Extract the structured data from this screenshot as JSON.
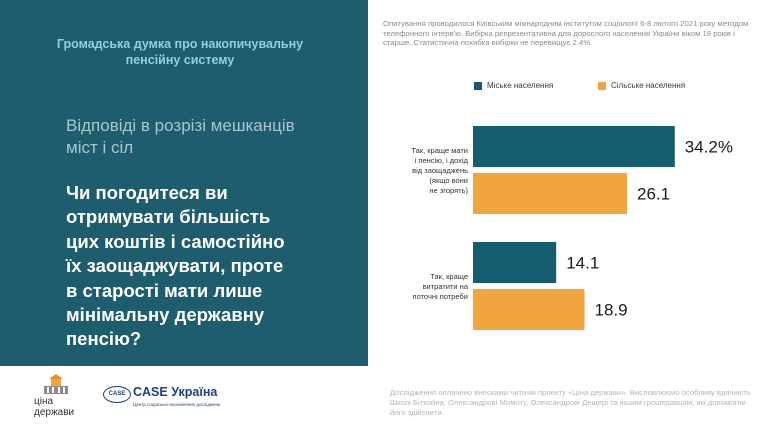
{
  "header": {
    "title": "Громадська думка про накопичувальну пенсійну систему"
  },
  "subtitle": "Відповіді в розрізі мешканців міст і сіл",
  "question": "Чи погодитеся ви отримувати більшість цих коштів і самостійно їх заощаджувати, проте в старості мати лише мінімальну державну пенсію?",
  "survey_note": "Опитування проводилося Київським міжнародним інститутом соціології 6-8 лютого 2021 року методом телефонного інтерв'ю. Вибірка репрезентативна для дорослого населення України віком 18 років і старше. Статистична похибка вибірки не перевищує 2.4%.",
  "funding_note": "Дослідження оплачено внесками читачів проекту «Ціна держави». Висловлюємо особливу вдячність Школі Біткойна, Олександрові Момоту, Олександрові Дещері та іншим грошедавцям, які допомогли його здійснити.",
  "logos": {
    "tsina_line1": "ціна",
    "tsina_line2": "держави",
    "case_mark": "CASE",
    "case_name": "CASE Україна",
    "case_sub": "Центр соціально-економічних досліджень"
  },
  "colors": {
    "panel": "#1e5d6e",
    "urban": "#135d6f",
    "rural": "#f2a441",
    "header": "#8fd0e0"
  },
  "chart_data": {
    "type": "bar",
    "orientation": "horizontal",
    "categories": [
      [
        "Так, краще мати",
        "і пенсію, і дохід",
        "від заощаджень",
        "(якщо вони",
        "не згорять)"
      ],
      [
        "Так, краще",
        "витратити на",
        "поточні потреби"
      ]
    ],
    "series": [
      {
        "name": "Міське населення",
        "color": "#135d6f",
        "values": [
          34.2,
          14.1
        ],
        "labels": [
          "34.2%",
          "14.1"
        ]
      },
      {
        "name": "Сільське населення",
        "color": "#f2a441",
        "values": [
          26.1,
          18.9
        ],
        "labels": [
          "26.1",
          "18.9"
        ]
      }
    ],
    "legend": "top",
    "grid": false,
    "unit": "%"
  }
}
